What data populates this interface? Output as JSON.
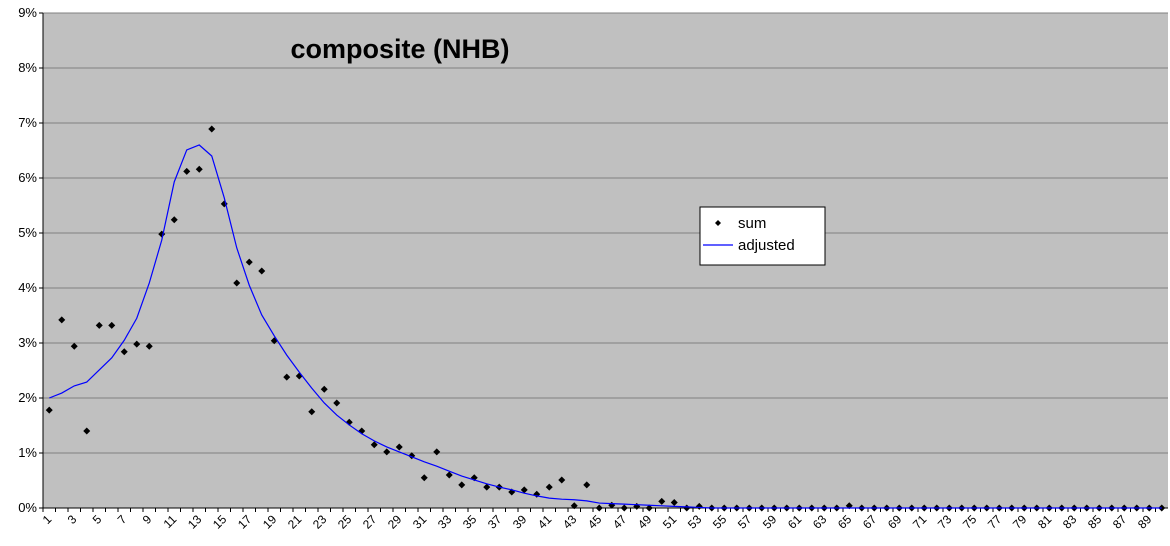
{
  "chart_data": {
    "type": "scatter_line",
    "title": "composite (NHB)",
    "categories": [
      1,
      null,
      3,
      null,
      5,
      null,
      7,
      null,
      9,
      null,
      11,
      null,
      13,
      null,
      15,
      null,
      17,
      null,
      19,
      null,
      21,
      null,
      23,
      null,
      25,
      null,
      27,
      null,
      29,
      null,
      31,
      null,
      33,
      null,
      35,
      null,
      37,
      null,
      39,
      null,
      41,
      null,
      43,
      null,
      45,
      null,
      47,
      null,
      49,
      null,
      51,
      null,
      53,
      null,
      55,
      null,
      57,
      null,
      59,
      null,
      61,
      null,
      63,
      null,
      65,
      null,
      67,
      null,
      69,
      null,
      71,
      null,
      73,
      null,
      75,
      null,
      77,
      null,
      79,
      null,
      81,
      null,
      83,
      null,
      85,
      null,
      87,
      null,
      89,
      null
    ],
    "series": [
      {
        "name": "sum",
        "kind": "points",
        "color": "#000000",
        "values": [
          1.78,
          3.42,
          2.94,
          1.4,
          3.32,
          3.32,
          2.84,
          2.98,
          2.94,
          4.98,
          5.24,
          6.12,
          6.16,
          6.89,
          5.53,
          4.09,
          4.47,
          4.31,
          3.04,
          2.38,
          2.4,
          1.75,
          2.16,
          1.91,
          1.56,
          1.4,
          1.15,
          1.02,
          1.11,
          0.95,
          0.55,
          1.02,
          0.6,
          0.42,
          0.55,
          0.38,
          0.38,
          0.29,
          0.33,
          0.25,
          0.38,
          0.51,
          0.04,
          0.42,
          0,
          0.05,
          0,
          0.03,
          0,
          0.12,
          0.1,
          0,
          0.03,
          0,
          0,
          0,
          0,
          0,
          0,
          0,
          0,
          0,
          0,
          0,
          0.04,
          0,
          0,
          0,
          0,
          0,
          0,
          0,
          0,
          0,
          0,
          0,
          0,
          0,
          0,
          0,
          0,
          0,
          0,
          0,
          0,
          0,
          0,
          0,
          0,
          0
        ]
      },
      {
        "name": "adjusted",
        "kind": "line",
        "color": "#0000ff",
        "values": [
          2.0,
          2.09,
          2.22,
          2.29,
          2.51,
          2.73,
          3.05,
          3.45,
          4.09,
          4.87,
          5.93,
          6.51,
          6.6,
          6.4,
          5.64,
          4.73,
          4.05,
          3.51,
          3.13,
          2.78,
          2.47,
          2.18,
          1.91,
          1.69,
          1.51,
          1.35,
          1.22,
          1.11,
          1.02,
          0.93,
          0.84,
          0.76,
          0.67,
          0.58,
          0.51,
          0.44,
          0.38,
          0.33,
          0.27,
          0.22,
          0.18,
          0.16,
          0.15,
          0.13,
          0.09,
          0.08,
          0.07,
          0.06,
          0.05,
          0.04,
          0.03,
          0.02,
          0.01,
          0,
          0,
          0,
          0,
          0,
          0,
          0,
          0,
          0,
          0,
          0,
          0,
          0,
          0,
          0,
          0,
          0,
          0,
          0,
          0,
          0,
          0,
          0,
          0,
          0,
          0,
          0,
          0,
          0,
          0,
          0,
          0,
          0,
          0,
          0,
          0,
          0
        ]
      }
    ],
    "ylim": [
      0,
      9
    ],
    "yticks": [
      {
        "value": 0,
        "label": "0%"
      },
      {
        "value": 1,
        "label": "1%"
      },
      {
        "value": 2,
        "label": "2%"
      },
      {
        "value": 3,
        "label": "3%"
      },
      {
        "value": 4,
        "label": "4%"
      },
      {
        "value": 5,
        "label": "5%"
      },
      {
        "value": 6,
        "label": "6%"
      },
      {
        "value": 7,
        "label": "7%"
      },
      {
        "value": 8,
        "label": "8%"
      },
      {
        "value": 9,
        "label": "9%"
      }
    ],
    "grid": true,
    "legend": "right"
  }
}
